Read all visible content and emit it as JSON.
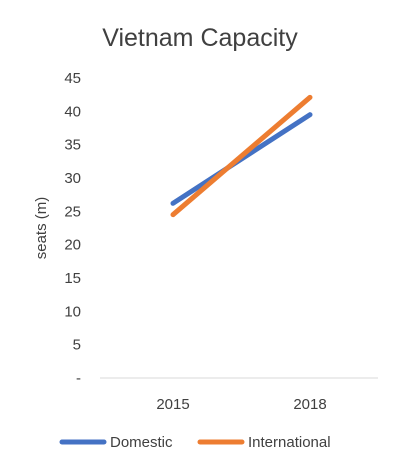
{
  "chart_data": {
    "type": "line",
    "title": "Vietnam Capacity",
    "xlabel": "",
    "ylabel": "seats (m)",
    "categories": [
      "2015",
      "2018"
    ],
    "ylim": [
      0,
      45
    ],
    "yticks": [
      0,
      5,
      10,
      15,
      20,
      25,
      30,
      35,
      40,
      45
    ],
    "ytick_labels": [
      "-",
      "5",
      "10",
      "15",
      "20",
      "25",
      "30",
      "35",
      "40",
      "45"
    ],
    "grid": false,
    "legend_position": "bottom",
    "series": [
      {
        "name": "Domestic",
        "values": [
          26.2,
          39.5
        ],
        "color": "#4472C4"
      },
      {
        "name": "International",
        "values": [
          24.5,
          42.1
        ],
        "color": "#ED7D31"
      }
    ]
  }
}
